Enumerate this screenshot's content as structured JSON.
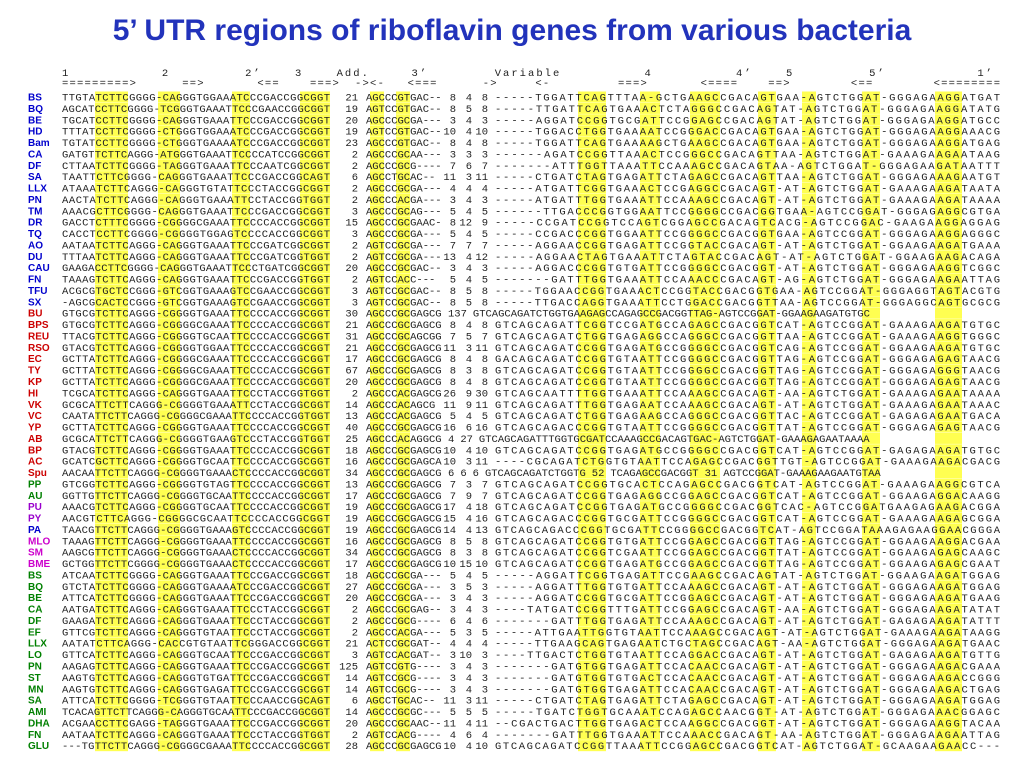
{
  "title": "5’ UTR regions of riboflavin genes from various bacteria",
  "header": {
    "numbers": "1           2         2’    3    Add.     3’        Variable          4          4’    5         5’           1’",
    "arrows": "=========>      ==>       <==    ===>  -><-   <===      ->     <-         ===>       <====    ==>        <==        <========"
  },
  "rows": [
    {
      "name": "BS",
      "color": "#0000cc",
      "cells": [
        "TTGTATCTTCGGGG-CAGGGTGGAAATCCCGACCGGCGGT",
        "21",
        "AGCCCGTGAC--",
        "8",
        "4",
        "8",
        "-----TGGATTCAGTTTAA-GCTGAAGCCGACAGTGAA-AGTCTGGAT-GGGAGAAGGATGAT"
      ]
    },
    {
      "name": "BQ",
      "color": "#0000cc",
      "cells": [
        "AGCATCCTTCGGGG-TCGGGTGAAATTCCCGAACCGGCGGT",
        "19",
        "AGTCCGTGAC--",
        "8",
        "5",
        "8",
        "-----TTGATTCAGTGAAACTCTAGGGCCGACAGTAT-AGTCTGGAT-GGGAGAAGGATATG"
      ]
    },
    {
      "name": "BE",
      "color": "#0000cc",
      "cells": [
        "TGCATCCTTCGGGG-CAGGGTGAAATTCCCGACCGGCGGT",
        "20",
        "AGCCCGCGA---",
        "3",
        "4",
        "3",
        "-----AGGATCCGGTGCGATTCCGGAGCCGACAGTAT-AGTCTGGAT-GGGAGAAGGATGCC"
      ]
    },
    {
      "name": "HD",
      "color": "#0000cc",
      "cells": [
        "TTTATCCTTCGGGG-CTGGGTGGAAATCCCGACCGGCGGT",
        "19",
        "AGTCCGTGAC--",
        "10",
        "4",
        "10",
        "-----TGGACCTGGTGAAAATCCGGGACCGACAGTGAA-AGTCTGGAT-GGGAGAAGGAAACG"
      ]
    },
    {
      "name": "Bam",
      "color": "#0000cc",
      "cells": [
        "TGTATCCTTCGGGG-CTGGGTGAAAATCCCGACCGGCGGT",
        "23",
        "AGCCCGTGAC--",
        "8",
        "4",
        "8",
        "-----TGGATTCAGTGAAAAGCTGAAGCCGACAGTGAA-AGTCTGGAT-GGGAGAAGGATGAG"
      ]
    },
    {
      "name": "CA",
      "color": "#0000cc",
      "cells": [
        "GATGTTCTTCAGGG-ATGGGTGAAATTCCCCATCCGGCGGT",
        "2",
        "AGCCCGCAA---",
        "3",
        "3",
        "3",
        "------AGATCCGGTTAAACTCCGGGCCGACAGTTAA-AGTCTGGAT-GAAAGAAGAATAAG"
      ]
    },
    {
      "name": "DF",
      "color": "#0000cc",
      "cells": [
        "CTTAATCTTCGGGG-TAGGGTGAAATTCCCAATCGGCGGT",
        "2",
        "AGCCCGCG----",
        "7",
        "6",
        "7",
        "-------ATTTGGTTAAATTCCAAAGCCGACAGTAA-AGTCTGGAT-GGGAGAAGATAATTT"
      ]
    },
    {
      "name": "SA",
      "color": "#0000cc",
      "cells": [
        "TAATTCTTCGGGG-CAGGGTGAAATTCCCGACCGGCAGT",
        "6",
        "AGCCTGCAC--",
        "11",
        "3",
        "11",
        "-----CTGATCTAGTGAGATTCTAGAGCCGACAGTTAA-AGTCTGGAT-GGGAGAAAGAATGT"
      ]
    },
    {
      "name": "LLX",
      "color": "#0000cc",
      "cells": [
        "ATAAATCTTCAGGG-CAGGGTGTATTCCCTACCGGCGGT",
        "2",
        "AGCCCGCGA---",
        "4",
        "4",
        "4",
        "-----ATGATTCGGTGAAACTCCGAGGCCGACAGT-AT-AGTCTGGAT-GAAAGAAGATAATA"
      ]
    },
    {
      "name": "PN",
      "color": "#0000cc",
      "cells": [
        "AACTATCTTCAGGG-CAGGGTGAAATTCCTACCGGTGGT",
        "2",
        "AGCCCACGA---",
        "3",
        "4",
        "3",
        "-----ATGATTTGGTGAAATTCCAAAGCCGACAGT-AT-AGTCTGGAT-GAAAGAAGATAAAA"
      ]
    },
    {
      "name": "TM",
      "color": "#0000cc",
      "cells": [
        "AAACGCTTCGGGG-CAGGGTGAAATTCCCGACCGGCGGT",
        "3",
        "AGCCCGCAG---",
        "5",
        "4",
        "5",
        "------TTGACCCGGTGGAATTCCGGGGCCGACGGTGAA-AGTCCGGAT-GGGAGAGGCGTGA"
      ]
    },
    {
      "name": "DR",
      "color": "#0000cc",
      "cells": [
        "GACCTCTTTCGGGG-CGGGGCGAAATTCCCCACCGGCGGT",
        "15",
        "AGCCCGCGAAC-",
        "8",
        "12",
        "9",
        "-----CCGATCCGGTCCAGTCGGAGCCGACAGTCACG-AGTCCGGAC-GAAGAAGGAGGAG"
      ]
    },
    {
      "name": "TQ",
      "color": "#0000cc",
      "cells": [
        "CACCTCCTTCGGGG-CGGGGTGGAGTCCCCACCGGCGGT",
        "3",
        "AGCCCGCGA---",
        "5",
        "4",
        "5",
        "-----CCGACCCGGTGGAATTCCGGGGCCGACGGTGAA-AGTCCGGAT-GGGAGAAGGAGGGC"
      ]
    },
    {
      "name": "AO",
      "color": "#0000cc",
      "cells": [
        "AATAATCTTCAGGG-CAGGGTGAAATTCCCGATCGGCGGT",
        "2",
        "AGTCCGCGA---",
        "7",
        "7",
        "7",
        "-----AGGAACCGGTGAGATTCCGGTACCGACAGT-AT-AGTCTGGAT-GGAAGAAGATGAAA"
      ]
    },
    {
      "name": "DU",
      "color": "#0000cc",
      "cells": [
        "TTTAATCTTCAGGG-CAGGGTGAAATTCCCGATCGGTGGT",
        "2",
        "AGTCCGCGA---",
        "13",
        "4",
        "12",
        "-----AGGAACTAGTGAAATTCTAGTACCGACAGT-AT-AGTCTGGAT-GGAAGAAGACAGA"
      ]
    },
    {
      "name": "CAU",
      "color": "#0000cc",
      "cells": [
        "GAAGACCTTCGGGG-CAGGGTGAAATTCCCTGATCGGCGGT",
        "20",
        "AGCCCGCGAC--",
        "3",
        "4",
        "3",
        "-----AGGACCCGGTGTGATTCCGGGGCCGACGGT-AT-AGTCTGGAT-GGGAGAAGGTCGGC"
      ]
    },
    {
      "name": "FN",
      "color": "#0000cc",
      "cells": [
        "TAAAGTCTTCAGGG-CAGGGTGAAATTCCCGACCGGTGGT",
        "2",
        "AGTCCACC---",
        "5",
        "4",
        "5",
        "-------GATTTGGTGAAATTCCAAACCCGACAGT-AG-AGTCTGGAT-GGGAGAAGAATTAG"
      ]
    },
    {
      "name": "TFU",
      "color": "#0000cc",
      "cells": [
        "ACGCGTGCTCCGGG-GTCGGTGAAAGTCCGAACCGGCGGT",
        "3",
        "AGTCCGCGAC--",
        "8",
        "5",
        "8",
        "-----TGGAACCGGTGAAACTCCGGTACCGACGGTGAA-AGTCCGGAT-GGGAGGTAGTACGTG"
      ]
    },
    {
      "name": "SX",
      "color": "#0000cc",
      "cells": [
        "-AGCGCACTCCGGG-GTCGGTGAAAGTCCGAACCGGCGGT",
        "3",
        "AGTCCGCGAC--",
        "8",
        "5",
        "8",
        "-----TTGACCAGGTGAAATTCCTGGACCGACGGTTAA-AGTCCGGAT-GGGAGGCAGTGCGCG"
      ]
    },
    {
      "name": "BU",
      "color": "#cc0000",
      "cells": [
        "GTGCGTCTTCAGGG-CGGGGTGAAATTCCCCACCGGCGGT",
        "30",
        "AGCCCGCGAGCG",
        "137",
        "GTCAGCAGATCTGGTGAAGAGCCAGAGCCGACGGTTAG-AGTCCGGAT-GGAAGAAGATGTGC"
      ]
    },
    {
      "name": "BPS",
      "color": "#cc0000",
      "cells": [
        "GTGCGTCTTCAGGG-CGGGGCGAAATTCCCCACCGGCGGT",
        "21",
        "AGCCCGCGAGCG",
        "8",
        "4",
        "8",
        "GTCAGCAGATTCGGTCCGATGCCAGAGCCGACGGTCAT-AGTCCGGAT-GAAAGAAGATGTGC"
      ]
    },
    {
      "name": "REU",
      "color": "#cc0000",
      "cells": [
        "TTACGTCTTCAGGG-CGGGGTGCAATTCCCCACCGGCGGT",
        "31",
        "AGCCCGCAGCGG",
        "7",
        "5",
        "7",
        "GTCAGCAGATCTGGTGAGAGGCCAGGGCCGACGGTTAA-AGTCCGGAT-GAAAGAAGGTGGGC"
      ]
    },
    {
      "name": "RSO",
      "color": "#cc0000",
      "cells": [
        "GTACGTCTTCAGGG-CGGGGTGGAATTCCCCACCGGCGGT",
        "21",
        "AGCCCGCGAGCG",
        "11",
        "3",
        "11",
        "GTCAGCAGATCCGGTGAGATGCCGGGGCCGACGGTCAG-AGTCCGGAT-GGAAGAAGATGTGC"
      ]
    },
    {
      "name": "EC",
      "color": "#cc0000",
      "cells": [
        "GCTTATCTTCAGGG-CGGGGCGAAATTCCCCACCGGCGGT",
        "17",
        "AGCCCGCGAGCG",
        "8",
        "4",
        "8",
        "GACAGCAGATCCGGTGTAATTCCGGGGCCGACGGTTAG-AGTCCGGAT-GGGAGAGAGTAACG"
      ]
    },
    {
      "name": "TY",
      "color": "#cc0000",
      "cells": [
        "GCTTATCTTCAGGG-CGGGGCGAAATTCCCCACCGGCGGT",
        "67",
        "AGCCCGCGAGCG",
        "8",
        "3",
        "8",
        "GTCAGCAGATCCGGTGTAATTCCGGGGCCGACGGTTAG-AGTCCGGAT-GGGAGAGGGTAACG"
      ]
    },
    {
      "name": "KP",
      "color": "#cc0000",
      "cells": [
        "GCTTATCTTCAGGG-CGGGGCGAAATTCCCCACCGGCGGT",
        "20",
        "AGCCCGCGAGCG",
        "8",
        "4",
        "8",
        "GTCAGCAGATCCGGTGTAATTCCGGGGCCGACGGTTAG-AGTCCGGAT-GGGAGAGAGTAACG"
      ]
    },
    {
      "name": "HI",
      "color": "#cc0000",
      "cells": [
        "TCGCATCTTCAGGG-CAGGGTGAAATTCCCTACCGGTGGT",
        "2",
        "AGCCCACGAGCG",
        "26",
        "9",
        "30",
        "GTCAGCAATTTTGGTGAAATTCCAAAGCCGACAGT-AA-AGTCTGGAT-GAAAGAGAATAAAA"
      ]
    },
    {
      "name": "VK",
      "color": "#cc0000",
      "cells": [
        "GCGCATTCTTCAGGG-CGGGGTGAAATTCCTACCGGCGGT",
        "14",
        "AGCCCACAGCG",
        "11",
        "9",
        "11",
        "GTCAGCAGATTTGGTGAGAATCCAAAGCCGACAGT-AT-AGTCTGGAT-GAAAGAGAATAAAC"
      ]
    },
    {
      "name": "VC",
      "color": "#cc0000",
      "cells": [
        "CAATATTCTTCAGGG-CGGGGCGAAATTCCCCACCGGTGGT",
        "13",
        "AGCCCACGAGCG",
        "5",
        "4",
        "5",
        "GTCAGCAGATCTGGTGAGAAGCCAGGGCCGACGGTTAC-AGTCCGGAT-GAGAGAGAATGACA"
      ]
    },
    {
      "name": "YP",
      "color": "#cc0000",
      "cells": [
        "GCTTATCTTCAGGG-CGGGGTGAAATTCCCCACCGGCGGT",
        "40",
        "AGCCCGCGAGCG",
        "16",
        "6",
        "16",
        "GTCAGCAGACCCGGTGTAATTCCGGGGCCGACGGTTAT-AGTCCGGAT-GGGAGAGAGTAACG"
      ]
    },
    {
      "name": "AB",
      "color": "#cc0000",
      "cells": [
        "GCGCATTCTTCAGGG-CGGGGTGAAGTCCCTACCGGTGGT",
        "25",
        "AGCCCACAGGCG",
        "4",
        "27",
        "GTCAGCAGATTTGGTGCGATCCAAAGCCGACAGTGAC-AGTCTGGAT-GAAAGAGAATAAAA"
      ]
    },
    {
      "name": "BP",
      "color": "#cc0000",
      "cells": [
        "GTACGTCTTCAGGG-CGGGGTGAAATTCCCCACCGGCGGT",
        "18",
        "AGCCCGCGAGCG",
        "10",
        "4",
        "10",
        "GTCAGCAGATCCGGTGAGATGCCGGGGCCGACGGTCAT-AGTCCGGAT-GAGAGAAGATGTGC"
      ]
    },
    {
      "name": "AC",
      "color": "#cc0000",
      "cells": [
        "GCATCGCTTCAGGG-CGGGGTGCAATTCCCCACCGGCGGT",
        "16",
        "AGCCCGCGAGCA",
        "10",
        "3",
        "11",
        "----CGCAGATCTGGTGTAATTCCAGAGCCGACGGTTGT-AGTCCGGAT-GAAAGAAGACGACG"
      ]
    },
    {
      "name": "Spu",
      "color": "#cc0000",
      "cells": [
        "AACAATTCTTCAGGG-CGGGGTGAAACTCCCCACCGGCGGT",
        "34",
        "AGCCCGCGAGCG",
        "6",
        "6",
        "6",
        "GTCAGCAGATCTGGTG",
        "52",
        "TCAGAGCCGACGGT",
        "31",
        "AGTCCGGAT-GAAAGAAGAATGTAA"
      ]
    },
    {
      "name": "PP",
      "color": "#008000",
      "cells": [
        "GTCGGTCTTCAGGG-CGGGGTGTAGTTCCCCACCGGCGGT",
        "13",
        "AGCCCGCGAGCG",
        "7",
        "3",
        "7",
        "GTCAGCAGATCCGGTGCACTCCAGAGCCGACGGTCAT-AGTCCGGAT-GAAAGAAGGCGTCA"
      ]
    },
    {
      "name": "AU",
      "color": "#008000",
      "cells": [
        "GGTTGTTCTTCAGGG-CGGGGTGCAATTCCCCACCGGCGGT",
        "17",
        "AGCCCGCGAGCG",
        "7",
        "9",
        "7",
        "GTCAGCAGATCCGGTGAGAGGCCGGAGCCGACGGTCAT-AGTCCGGAT-GGAAGAGGACAAGG"
      ]
    },
    {
      "name": "PU",
      "color": "#9900cc",
      "cells": [
        "AAACGTCTTCAGGG-CGGGGTGCAATTCCCCACCGGCGGT",
        "19",
        "AGCCCGCGAGCG",
        "17",
        "4",
        "18",
        "GTCAGCAGATCCGGTGAGATGCCGGGGCCGACGGTCAC-AGTCCGGATGAAGAGAAGACGGA"
      ]
    },
    {
      "name": "PY",
      "color": "#9900cc",
      "cells": [
        "AACGTCTTCAGGG-CGGGGCGCAATTCCCCACCGGCGGT",
        "19",
        "AGCCCGCGAGCG",
        "15",
        "4",
        "16",
        "GTCAGCAGACCCGGTGCGATTCCGGGGCCGACGGTCAT-AGTCCGGAT-GAAAGAAGAGCGGA"
      ]
    },
    {
      "name": "PA",
      "color": "#0000cc",
      "cells": [
        "TAACGTTCTTCAGGG-CGGGGTGAAAGTCCCCACCGGCGGT",
        "19",
        "AGCCCGCGAGCG",
        "14",
        "4",
        "13",
        "GTCAGCAGACCCGGTGCGATTCCGGGGCCGACGGTCAT-AGTCCGGATAAAGAGAAGGAACGGGA"
      ]
    },
    {
      "name": "MLO",
      "color": "#cc00cc",
      "cells": [
        "TAAAGTTCTTCAGGG-CGGGGTGAAATTCCCCACCGGCGGT",
        "16",
        "AGCCCGCGAGCG",
        "8",
        "5",
        "8",
        "GTCAGCAGATCCGGTGTGATTCCGGAGCCGACGGTTAG-AGTCCGGAT-GGAAGAAGGACGAA"
      ]
    },
    {
      "name": "SM",
      "color": "#cc00cc",
      "cells": [
        "AAGCGTTCTTCAGGG-CGGGGTGAAACTCCCCACCGGCGGT",
        "34",
        "AGCCCGCGAGCG",
        "8",
        "3",
        "8",
        "GTCAGCAGATCCGGTCGAATTCCGGAGCCGACGGTTAT-AGTCCGGAT-GGAAGAGAGCAAGC"
      ]
    },
    {
      "name": "BME",
      "color": "#cc00cc",
      "cells": [
        "GCTGGTTCTTCGGGG-CGGGGTGAAACTCCCCACCGGCGGT",
        "17",
        "AGCCCGCGAGCG",
        "10",
        "15",
        "10",
        "GTCAGCAGATCCGGTGAGATGCCGGAGCCGACGGTTAG-AGTCCGGAT-GGAAGAGAGCGAAT"
      ]
    },
    {
      "name": "BS",
      "color": "#008000",
      "cells": [
        "ATCAATCTTCGGGG-CAGGGTGAAATTCCCGACCGGCGGT",
        "18",
        "AGCCCGCGA---",
        "5",
        "4",
        "5",
        "-----AGGATTCGGTGAGATTCCGAAGCCGACAGTAT-AGTCTGGAT-GGAAGAAGATGGAG"
      ]
    },
    {
      "name": "BQ",
      "color": "#008000",
      "cells": [
        "GTCTATCTTCGGGG-CAGGGTGAAAATCCCGACCGGCGGT",
        "27",
        "AGCCCGCGA---",
        "3",
        "5",
        "3",
        "-----AGGATTTGGTGTGATTCCAAAGCCGACAGT-AT-AGTCTGGAT-GGGAGAAGATGGAG"
      ]
    },
    {
      "name": "BE",
      "color": "#008000",
      "cells": [
        "ATTCATCTTCGGGG-CAGGGTGAAATTCCCGACCGGCGGT",
        "20",
        "AGCCCGCGA---",
        "3",
        "4",
        "3",
        "-----AGGATCCGGTGCGATTCCGGAGCCGACAGT-AT-AGTCTGGAT-GGGAGAAGATGAAG"
      ]
    },
    {
      "name": "CA",
      "color": "#008000",
      "cells": [
        "AATGATCTTCAGGG-CAGGGTGAAATTCCCTACCGGCGGT",
        "2",
        "AGCCCGCGAG--",
        "3",
        "4",
        "3",
        "----TATGATCCGGTTTGATTCCGGAGCCGACAGT-AA-AGTCTGGAT-GGGAGAAGATATAT"
      ]
    },
    {
      "name": "DF",
      "color": "#008000",
      "cells": [
        "GAAGATCTTCAGGG-CAGGGTGAAATTCCCTACCGGCGGT",
        "2",
        "AGCCCGCG----",
        "6",
        "4",
        "6",
        "-------GATTTGGTGAGATTCCAAAGCCGACAGT-AT-AGTCTGGAT-GAGAGAAGATATTT"
      ]
    },
    {
      "name": "EF",
      "color": "#008000",
      "cells": [
        "GTTCGTCTTCAGGG-CAGGGTGTAATTCCCTACCGGCGGT",
        "2",
        "AGCCCACGA---",
        "5",
        "3",
        "5",
        "-----ATTGAATTGGTGTAATTCCAAAGCCGACAGT-AT-AGTCTGGAT-GAAAGAAGATAAGG"
      ]
    },
    {
      "name": "LLX",
      "color": "#008000",
      "cells": [
        "AATATCTTCAGGG-CACCGTGTAATTCGGGACCGGCGGT",
        "21",
        "ACTCCGCGAT--",
        "4",
        "4",
        "4",
        "-----TTGAAGCAGTGAGAATCTGCTAGCCGACAGT-AA-AGTCTGGAT-GGGAGAAGATGAAC"
      ]
    },
    {
      "name": "LO",
      "color": "#008000",
      "cells": [
        "GTTCATCTTCAGGG-CAGGGTGCAATTCCCGACCGGCGGT",
        "3",
        "AGTCCACGAT--",
        "3",
        "10",
        "3",
        "----TTGACTCTGGTGTAATTCCAGGACCGACAGT-AT-AGTCTGGAT-GAGAGAAGATGTTG"
      ]
    },
    {
      "name": "PN",
      "color": "#008000",
      "cells": [
        "AAGAGTCTTCAGGG-CAGGGTGAAATTCCCGACCGGCGGT",
        "125",
        "AGTCCGTG----",
        "3",
        "4",
        "3",
        "-------GATGTGGTGAGATTCCACAACCGACAGT-AT-AGTCTGGAT-GGGAGAAGACGAAA"
      ]
    },
    {
      "name": "ST",
      "color": "#008000",
      "cells": [
        "AAGTGTCTTCAGGG-CAGGGTGTGATTCCCGACCGGCGGT",
        "14",
        "AGTCCGCG----",
        "3",
        "4",
        "3",
        "-------GATGTGGTGTGACTCCACAACCGACAGT-AT-AGTCTGGAT-GGGAGAAGACCGGG"
      ]
    },
    {
      "name": "MN",
      "color": "#008000",
      "cells": [
        "AAGTGTCTTCAGGG-CAGGGTGAGATTCCCGACCGGCGGT",
        "14",
        "AGTCCGCG----",
        "3",
        "4",
        "3",
        "-------GATGTGGTGAGATTCCACAACCGACAGT-AT-AGTCTGGAT-GGGAGAAGACTGAG"
      ]
    },
    {
      "name": "SA",
      "color": "#008000",
      "cells": [
        "ATTCATCTTCGGGG-TCGGGTGTAATTCCCAACCGGCAGT",
        "6",
        "AGCCTGCAC--",
        "11",
        "3",
        "11",
        "-----CTGATCTAGTGAGATTCTAGAGCCGACAGT-AT-AGTCTGGAT-GGGAGAAGATGGAG"
      ]
    },
    {
      "name": "AMI",
      "color": "#008000",
      "cells": [
        "TCACAGTTCTTCAGGG-CAGGGTGCAATTCCCGACCGGCGGT",
        "14",
        "AGCCCGCGC---",
        "5",
        "5",
        "5",
        "-----TGATCTGGTGCAAATCCAGAGCCAACGGT-AT-AGTCTGGAT-GGGAGAAACGGAGC"
      ]
    },
    {
      "name": "DHA",
      "color": "#008000",
      "cells": [
        "ACGAACCTTCGAGG-TAGGGTGAAATTCCCGACCGGCGGT",
        "20",
        "AGCCCGCAAC--",
        "11",
        "4",
        "11",
        "--CGACTGACTTGGTGAGACTCCAAGGCCGACGGT-AT-AGTCTGGAT-GGGAGAAGGTACAA"
      ]
    },
    {
      "name": "FN",
      "color": "#008000",
      "cells": [
        "AATAATCTTCAGGG-CAGGGTGAAATTCCCTACCGGTGGT",
        "2",
        "AGTCCACG----",
        "4",
        "6",
        "4",
        "-------GATTTGGTGAAATTCCAAACCGACAGT-AA-AGTCTGGAT-GGGAGAAGAATTAG"
      ]
    },
    {
      "name": "GLU",
      "color": "#008000",
      "cells": [
        "---TGTTCTTCAGGG-CGGGGCGAAATTCCCCACCGGCGGT",
        "28",
        "AGCCCGCGAGCG",
        "10",
        "4",
        "10",
        "GTCAGCAGATCCGGTTAAATTCCGGAGCCGACGGTCAT-AGTCTGGAT-GCAAGAAGAACC---"
      ]
    }
  ]
}
